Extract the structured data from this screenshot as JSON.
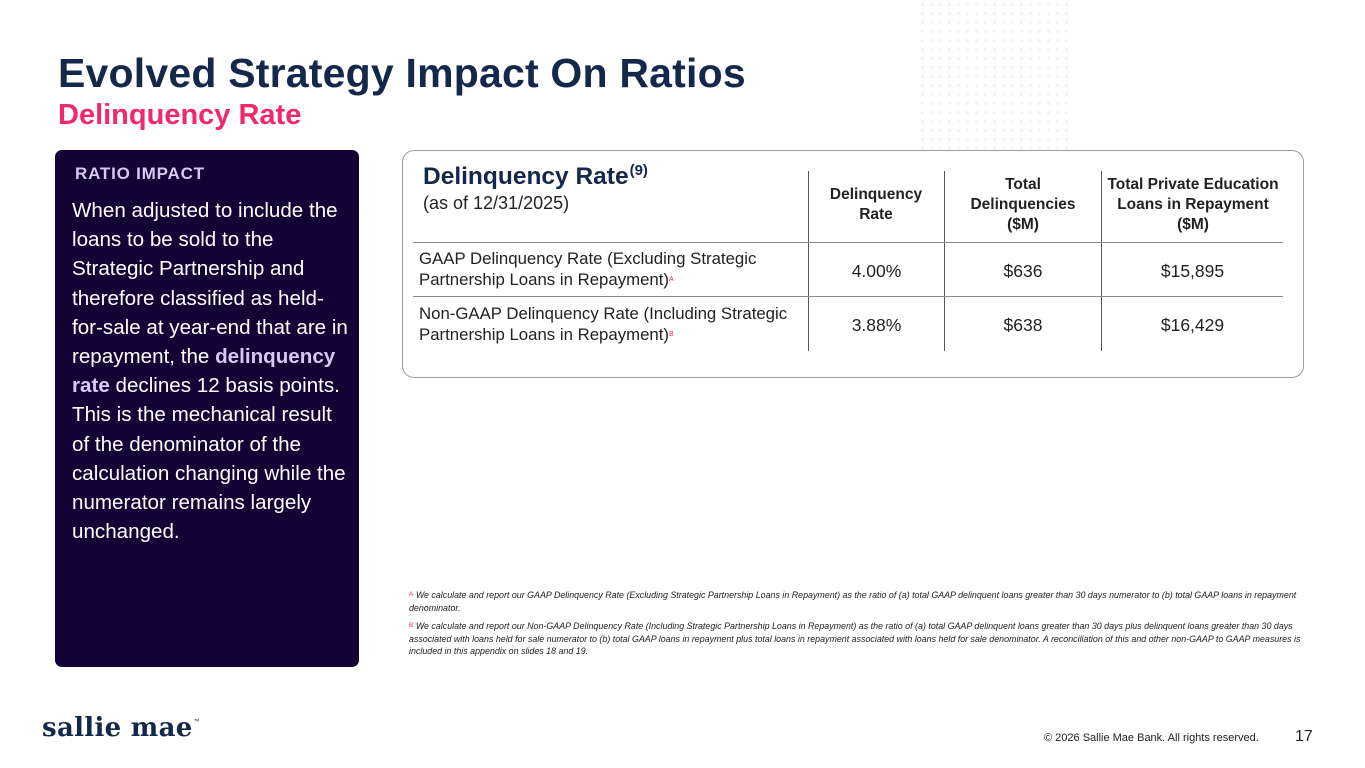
{
  "header": {
    "title": "Evolved Strategy Impact On Ratios",
    "subtitle": "Delinquency Rate"
  },
  "ratio_impact": {
    "heading": "RATIO IMPACT",
    "text_before": "When adjusted to include the loans to be sold to the Strategic Partnership and therefore classified as held-for-sale at year-end that are in repayment, the ",
    "highlight": "delinquency rate",
    "text_after": " declines 12 basis points. This is the mechanical result of the denominator of the calculation changing while the numerator remains largely unchanged."
  },
  "table": {
    "title": "Delinquency Rate",
    "title_ref": "(9)",
    "as_of": "(as of 12/31/2025)",
    "columns": [
      "Delinquency Rate",
      "Total Delinquencies ($M)",
      "Total Private Education Loans in Repayment ($M)"
    ],
    "rows": [
      {
        "label": "GAAP Delinquency Rate (Excluding Strategic Partnership Loans in Repayment)",
        "note": "A",
        "delinquency_rate": "4.00%",
        "total_delinquencies": "$636",
        "total_loans": "$15,895"
      },
      {
        "label": "Non-GAAP Delinquency Rate (Including Strategic Partnership Loans in Repayment)",
        "note": "B",
        "delinquency_rate": "3.88%",
        "total_delinquencies": "$638",
        "total_loans": "$16,429"
      }
    ]
  },
  "footnotes": [
    {
      "marker": "A",
      "text": "We calculate and report our GAAP Delinquency Rate (Excluding Strategic Partnership Loans in Repayment) as the ratio of (a) total GAAP delinquent loans greater than 30 days numerator to (b) total GAAP loans in repayment denominator."
    },
    {
      "marker": "B",
      "text": "We calculate and report our Non-GAAP Delinquency Rate (Including Strategic Partnership Loans in Repayment) as the ratio of (a) total GAAP delinquent loans greater than 30 days plus delinquent loans greater than 30 days associated with loans held for sale numerator to (b) total GAAP loans in repayment plus total loans in repayment associated with loans held for sale denominator. A reconciliation of this and other non-GAAP to GAAP measures is included in this appendix on slides 18 and 19."
    }
  ],
  "footer": {
    "logo": "sallie mae",
    "trademark": "™",
    "copyright": "© 2026 Sallie Mae Bank. All rights reserved.",
    "page_number": "17"
  },
  "colors": {
    "navy": "#14284b",
    "pink": "#f0296e",
    "panel": "#130335",
    "lavender": "#d7c8f4"
  }
}
